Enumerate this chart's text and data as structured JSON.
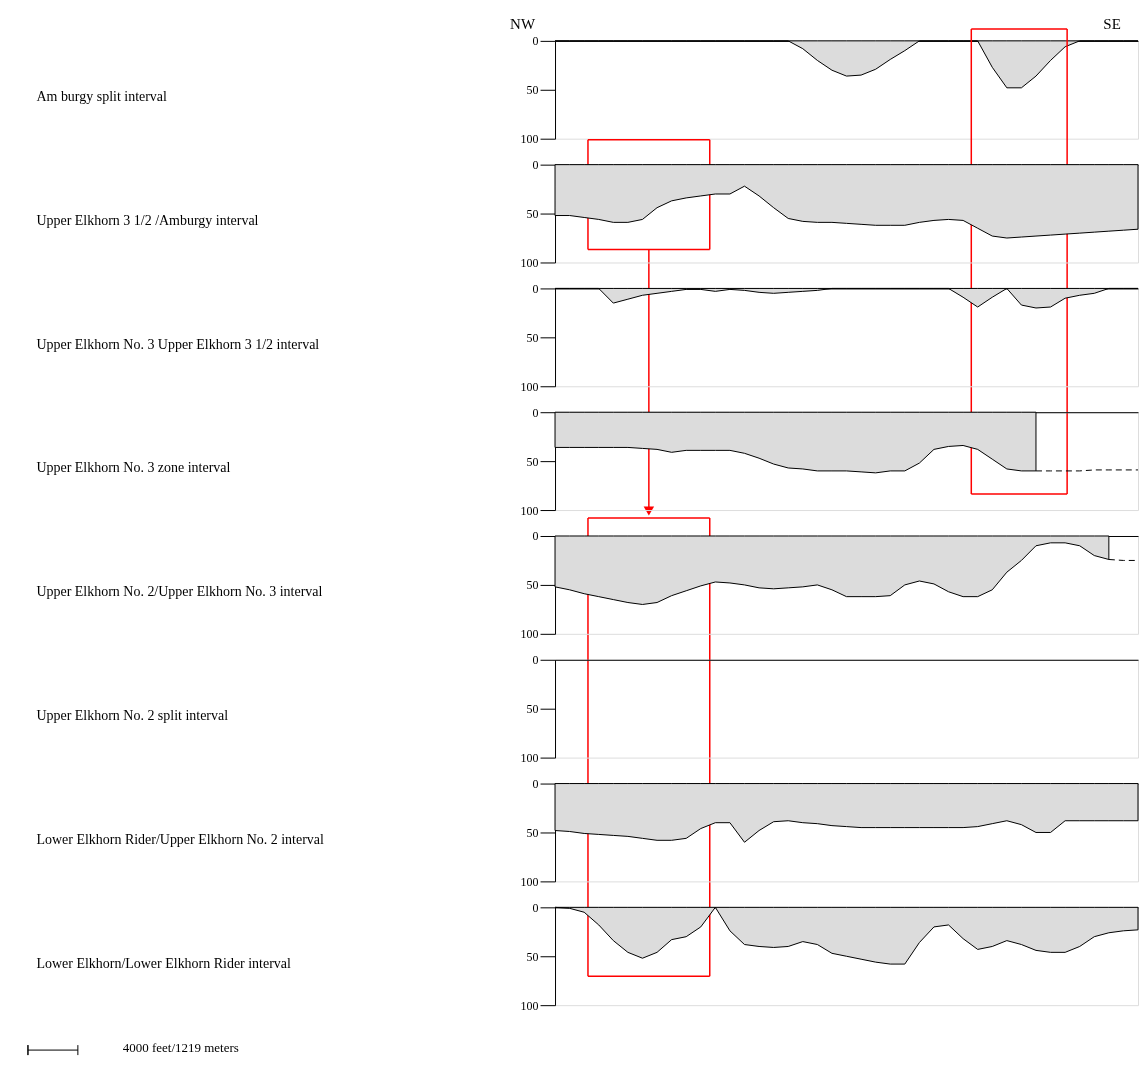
{
  "chart_data": [
    {
      "type": "area",
      "ylabel": "Am burgy split interval",
      "annotations": [
        "NW",
        "SE"
      ],
      "categories": [
        null,
        null,
        null,
        null,
        null,
        null,
        null,
        null,
        null,
        null,
        null,
        null,
        null,
        null,
        null,
        null,
        null,
        null,
        null,
        null,
        null,
        null,
        null,
        null,
        null,
        null,
        null,
        null,
        null,
        null,
        null,
        null,
        null,
        null,
        null,
        null,
        null,
        null,
        null,
        null,
        null
      ],
      "ylim": [
        100,
        0
      ],
      "yticks": [
        0,
        50,
        100
      ],
      "tick_labels": "y",
      "series": [
        {
          "color": "#dcdcdc",
          "values": [
            0,
            0,
            0,
            0,
            0,
            0,
            0,
            0,
            0,
            0,
            0,
            0,
            0,
            0,
            0,
            0,
            0,
            8,
            20,
            30,
            36,
            35,
            29,
            19,
            10,
            0,
            0,
            0,
            0,
            0,
            27,
            48,
            48,
            36,
            20,
            6,
            0,
            0,
            0,
            0,
            0
          ]
        }
      ]
    },
    {
      "type": "area",
      "ylabel": "Upper Elkhorn 3 1/2 /Amburgy interval",
      "categories": [
        null,
        null,
        null,
        null,
        null,
        null,
        null,
        null,
        null,
        null,
        null,
        null,
        null,
        null,
        null,
        null,
        null,
        null,
        null,
        null,
        null,
        null,
        null,
        null,
        null,
        null,
        null,
        null,
        null,
        null,
        null,
        null,
        null,
        null,
        null,
        null,
        null,
        null,
        null,
        null,
        null
      ],
      "ylim": [
        100,
        0
      ],
      "yticks": [
        0,
        50,
        100
      ],
      "tick_labels": "y",
      "series": [
        {
          "color": "#dcdcdc",
          "values": [
            52,
            52,
            54,
            56,
            59,
            59,
            56,
            44,
            37,
            34,
            32,
            30,
            30,
            22,
            32,
            44,
            55,
            58,
            59,
            59,
            60,
            61,
            62,
            62,
            62,
            59,
            57,
            56,
            57,
            65,
            73,
            75,
            74,
            73,
            72,
            71,
            70,
            69,
            68,
            67,
            66
          ]
        }
      ]
    },
    {
      "type": "area",
      "ylabel": "Upper Elkhorn No. 3 Upper Elkhorn 3 1/2 interval",
      "categories": [
        null,
        null,
        null,
        null,
        null,
        null,
        null,
        null,
        null,
        null,
        null,
        null,
        null,
        null,
        null,
        null,
        null,
        null,
        null,
        null,
        null,
        null,
        null,
        null,
        null,
        null,
        null,
        null,
        null,
        null,
        null,
        null,
        null,
        null,
        null,
        null,
        null,
        null,
        null,
        null,
        null
      ],
      "ylim": [
        100,
        0
      ],
      "yticks": [
        0,
        50,
        100
      ],
      "tick_labels": "y",
      "series": [
        {
          "color": "#dcdcdc",
          "values": [
            0,
            0,
            0,
            0,
            15,
            11,
            7,
            5,
            3,
            1,
            1,
            3,
            1,
            2,
            4,
            5,
            4,
            3,
            2,
            0,
            0,
            0,
            0,
            0,
            0,
            0,
            0,
            0,
            9,
            19,
            9,
            0,
            17,
            20,
            19,
            10,
            7,
            5,
            0,
            0,
            0
          ]
        }
      ]
    },
    {
      "type": "area",
      "ylabel": "Upper Elkhorn No. 3 zone interval",
      "categories": [
        null,
        null,
        null,
        null,
        null,
        null,
        null,
        null,
        null,
        null,
        null,
        null,
        null,
        null,
        null,
        null,
        null,
        null,
        null,
        null,
        null,
        null,
        null,
        null,
        null,
        null,
        null,
        null,
        null,
        null,
        null,
        null,
        null,
        null,
        null,
        null,
        null,
        null,
        null,
        null,
        null
      ],
      "ylim": [
        100,
        0
      ],
      "yticks": [
        0,
        50,
        100
      ],
      "tick_labels": "y",
      "series": [
        {
          "color": "#dcdcdc",
          "values": [
            36,
            36,
            36,
            36,
            36,
            36,
            37,
            38,
            41,
            39,
            39,
            39,
            39,
            42,
            47,
            53,
            57,
            58,
            60,
            60,
            60,
            61,
            62,
            60,
            60,
            52,
            38,
            35,
            34,
            38,
            48,
            58,
            60,
            60,
            null,
            null,
            null,
            null,
            null,
            null,
            null
          ]
        },
        {
          "type": "line",
          "line_style": "dashed",
          "color": "#000000",
          "values": [
            null,
            null,
            null,
            null,
            null,
            null,
            null,
            null,
            null,
            null,
            null,
            null,
            null,
            null,
            null,
            null,
            null,
            null,
            null,
            null,
            null,
            null,
            null,
            null,
            null,
            null,
            null,
            null,
            null,
            null,
            null,
            null,
            null,
            60,
            60,
            60,
            60,
            59,
            59,
            59,
            59
          ]
        }
      ]
    },
    {
      "type": "area",
      "ylabel": "Upper Elkhorn No. 2/Upper Elkhorn No. 3 interval",
      "categories": [
        null,
        null,
        null,
        null,
        null,
        null,
        null,
        null,
        null,
        null,
        null,
        null,
        null,
        null,
        null,
        null,
        null,
        null,
        null,
        null,
        null,
        null,
        null,
        null,
        null,
        null,
        null,
        null,
        null,
        null,
        null,
        null,
        null,
        null,
        null,
        null,
        null,
        null,
        null,
        null,
        null
      ],
      "ylim": [
        100,
        0
      ],
      "yticks": [
        0,
        50,
        100
      ],
      "tick_labels": "y",
      "series": [
        {
          "color": "#dcdcdc",
          "values": [
            52,
            55,
            59,
            62,
            65,
            68,
            70,
            68,
            61,
            56,
            51,
            47,
            48,
            50,
            53,
            54,
            53,
            52,
            50,
            55,
            62,
            62,
            62,
            61,
            50,
            46,
            49,
            57,
            62,
            62,
            55,
            37,
            25,
            10,
            7,
            7,
            10,
            20,
            24,
            null,
            null
          ]
        },
        {
          "type": "line",
          "line_style": "dashed",
          "color": "#000000",
          "values": [
            null,
            null,
            null,
            null,
            null,
            null,
            null,
            null,
            null,
            null,
            null,
            null,
            null,
            null,
            null,
            null,
            null,
            null,
            null,
            null,
            null,
            null,
            null,
            null,
            null,
            null,
            null,
            null,
            null,
            null,
            null,
            null,
            null,
            null,
            null,
            null,
            null,
            null,
            24,
            25,
            25
          ]
        }
      ]
    },
    {
      "type": "area",
      "ylabel": "Upper Elkhorn No. 2 split interval",
      "categories": [
        null,
        null,
        null,
        null,
        null,
        null,
        null,
        null,
        null,
        null,
        null,
        null,
        null,
        null,
        null,
        null,
        null,
        null,
        null,
        null,
        null,
        null,
        null,
        null,
        null,
        null,
        null,
        null,
        null,
        null,
        null,
        null,
        null,
        null,
        null,
        null,
        null,
        null,
        null,
        null,
        null
      ],
      "ylim": [
        100,
        0
      ],
      "yticks": [
        0,
        50,
        100
      ],
      "tick_labels": "y"
    },
    {
      "type": "area",
      "ylabel": "Lower Elkhorn Rider/Upper Elkhorn No. 2 interval",
      "categories": [
        null,
        null,
        null,
        null,
        null,
        null,
        null,
        null,
        null,
        null,
        null,
        null,
        null,
        null,
        null,
        null,
        null,
        null,
        null,
        null,
        null,
        null,
        null,
        null,
        null,
        null,
        null,
        null,
        null,
        null,
        null,
        null,
        null,
        null,
        null,
        null,
        null,
        null,
        null,
        null,
        null
      ],
      "ylim": [
        100,
        0
      ],
      "yticks": [
        0,
        50,
        100
      ],
      "tick_labels": "y",
      "series": [
        {
          "color": "#dcdcdc",
          "values": [
            48,
            49,
            51,
            52,
            53,
            54,
            56,
            58,
            58,
            56,
            46,
            40,
            40,
            60,
            48,
            39,
            38,
            40,
            41,
            43,
            44,
            45,
            45,
            45,
            45,
            45,
            45,
            45,
            45,
            44,
            41,
            38,
            42,
            50,
            50,
            38,
            38,
            38,
            38,
            38,
            38
          ]
        }
      ]
    },
    {
      "type": "area",
      "ylabel": "Lower Elkhorn/Lower Elkhorn Rider interval",
      "annotations": [
        "4000 feet/1219 meters"
      ],
      "categories": [
        null,
        null,
        null,
        null,
        null,
        null,
        null,
        null,
        null,
        null,
        null,
        null,
        null,
        null,
        null,
        null,
        null,
        null,
        null,
        null,
        null,
        null,
        null,
        null,
        null,
        null,
        null,
        null,
        null,
        null,
        null,
        null,
        null,
        null,
        null,
        null,
        null,
        null,
        null,
        null,
        null
      ],
      "ylim": [
        100,
        0
      ],
      "yticks": [
        0,
        50,
        100
      ],
      "tick_labels": "y",
      "series": [
        {
          "color": "#dcdcdc",
          "values": [
            0,
            1,
            5,
            18,
            34,
            46,
            52,
            46,
            33,
            30,
            20,
            0,
            24,
            38,
            40,
            41,
            40,
            35,
            38,
            47,
            50,
            53,
            56,
            58,
            58,
            36,
            20,
            18,
            32,
            43,
            40,
            34,
            38,
            44,
            46,
            46,
            40,
            30,
            26,
            24,
            23
          ]
        }
      ]
    }
  ]
}
